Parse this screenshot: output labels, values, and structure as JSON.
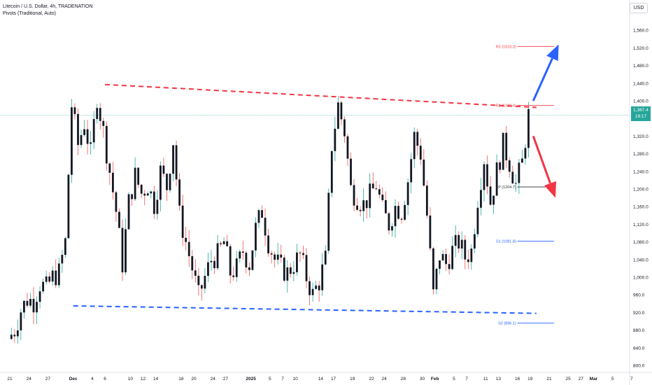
{
  "header": {
    "symbol_line": "Litecoin / U.S. Dollar, 4h, TRADENATION",
    "indicator_line": "Pivots (Traditional, Auto)"
  },
  "currency_button": "USD",
  "last_price": {
    "value": "1,367.4",
    "countdown": "19:17"
  },
  "chart_data": {
    "type": "candlestick",
    "title": "Litecoin / U.S. Dollar, 4h, TRADENATION",
    "ylim": [
      800,
      1600
    ],
    "y_ticks": [
      800,
      840,
      880,
      920,
      960,
      1000,
      1040,
      1080,
      1120,
      1160,
      1200,
      1240,
      1280,
      1320,
      1360,
      1400,
      1440,
      1480,
      1520,
      1560
    ],
    "y_tick_labels": [
      "800.0",
      "840.0",
      "880.0",
      "920.0",
      "960.0",
      "1,000.0",
      "1,040.0",
      "1,080.0",
      "1,120.0",
      "1,160.0",
      "1,200.0",
      "1,240.0",
      "1,280.0",
      "1,320.0",
      "1,360.0",
      "1,400.0",
      "1,440.0",
      "1,480.0",
      "1,520.0",
      "1,560.0"
    ],
    "x_ticks": [
      {
        "day": 0,
        "label": "21",
        "bold": false
      },
      {
        "day": 3,
        "label": "24",
        "bold": false
      },
      {
        "day": 6,
        "label": "27",
        "bold": false
      },
      {
        "day": 10,
        "label": "Dec",
        "bold": true
      },
      {
        "day": 13,
        "label": "4",
        "bold": false
      },
      {
        "day": 15,
        "label": "6",
        "bold": false
      },
      {
        "day": 19,
        "label": "10",
        "bold": false
      },
      {
        "day": 21,
        "label": "12",
        "bold": false
      },
      {
        "day": 23,
        "label": "14",
        "bold": false
      },
      {
        "day": 27,
        "label": "18",
        "bold": false
      },
      {
        "day": 29,
        "label": "20",
        "bold": false
      },
      {
        "day": 32,
        "label": "24",
        "bold": false
      },
      {
        "day": 34,
        "label": "27",
        "bold": false
      },
      {
        "day": 38,
        "label": "2025",
        "bold": true
      },
      {
        "day": 41,
        "label": "5",
        "bold": false
      },
      {
        "day": 43,
        "label": "7",
        "bold": false
      },
      {
        "day": 45,
        "label": "10",
        "bold": false
      },
      {
        "day": 49,
        "label": "14",
        "bold": false
      },
      {
        "day": 51,
        "label": "17",
        "bold": false
      },
      {
        "day": 54,
        "label": "19",
        "bold": false
      },
      {
        "day": 57,
        "label": "22",
        "bold": false
      },
      {
        "day": 59,
        "label": "24",
        "bold": false
      },
      {
        "day": 62,
        "label": "28",
        "bold": false
      },
      {
        "day": 65,
        "label": "30",
        "bold": false
      },
      {
        "day": 67,
        "label": "Feb",
        "bold": true
      },
      {
        "day": 70,
        "label": "5",
        "bold": false
      },
      {
        "day": 72,
        "label": "7",
        "bold": false
      },
      {
        "day": 75,
        "label": "11",
        "bold": false
      },
      {
        "day": 77,
        "label": "13",
        "bold": false
      },
      {
        "day": 80,
        "label": "16",
        "bold": false
      },
      {
        "day": 82,
        "label": "19",
        "bold": false
      },
      {
        "day": 85,
        "label": "21",
        "bold": false
      },
      {
        "day": 88,
        "label": "25",
        "bold": false
      },
      {
        "day": 90,
        "label": "27",
        "bold": false
      },
      {
        "day": 92,
        "label": "Mar",
        "bold": true
      },
      {
        "day": 95,
        "label": "5",
        "bold": false
      },
      {
        "day": 98,
        "label": "7",
        "bold": false
      }
    ],
    "x_range": [
      -0.5,
      99.5
    ],
    "price_path": [
      [
        0,
        860
      ],
      [
        1,
        880
      ],
      [
        2,
        925
      ],
      [
        3,
        950
      ],
      [
        4,
        945
      ],
      [
        5,
        985
      ],
      [
        6,
        975
      ],
      [
        7,
        1000
      ],
      [
        8,
        1010
      ],
      [
        9,
        1080
      ],
      [
        10,
        1390
      ],
      [
        11,
        1300
      ],
      [
        12,
        1350
      ],
      [
        13,
        1280
      ],
      [
        14,
        1410
      ],
      [
        15,
        1330
      ],
      [
        16,
        1240
      ],
      [
        17,
        1150
      ],
      [
        18,
        1030
      ],
      [
        19,
        1170
      ],
      [
        20,
        1230
      ],
      [
        21,
        1190
      ],
      [
        22,
        1210
      ],
      [
        23,
        1165
      ],
      [
        24,
        1240
      ],
      [
        25,
        1205
      ],
      [
        26,
        1310
      ],
      [
        27,
        1140
      ],
      [
        28,
        1080
      ],
      [
        29,
        1020
      ],
      [
        30,
        955
      ],
      [
        31,
        1000
      ],
      [
        32,
        1040
      ],
      [
        33,
        1050
      ],
      [
        34,
        1080
      ],
      [
        35,
        1010
      ],
      [
        36,
        1020
      ],
      [
        37,
        1060
      ],
      [
        38,
        1030
      ],
      [
        39,
        1110
      ],
      [
        40,
        1150
      ],
      [
        41,
        1080
      ],
      [
        42,
        1040
      ],
      [
        43,
        1020
      ],
      [
        44,
        1010
      ],
      [
        45,
        1030
      ],
      [
        46,
        1050
      ],
      [
        47,
        1000
      ],
      [
        48,
        960
      ],
      [
        49,
        990
      ],
      [
        50,
        1040
      ],
      [
        51,
        1300
      ],
      [
        52,
        1390
      ],
      [
        53,
        1330
      ],
      [
        54,
        1200
      ],
      [
        55,
        1180
      ],
      [
        56,
        1165
      ],
      [
        57,
        1185
      ],
      [
        58,
        1210
      ],
      [
        59,
        1150
      ],
      [
        60,
        1120
      ],
      [
        61,
        1160
      ],
      [
        62,
        1150
      ],
      [
        63,
        1220
      ],
      [
        64,
        1320
      ],
      [
        65,
        1280
      ],
      [
        66,
        1140
      ],
      [
        67,
        960
      ],
      [
        68,
        1050
      ],
      [
        69,
        1030
      ],
      [
        70,
        1060
      ],
      [
        71,
        1080
      ],
      [
        72,
        1045
      ],
      [
        73,
        1060
      ],
      [
        74,
        1180
      ],
      [
        75,
        1270
      ],
      [
        76,
        1170
      ],
      [
        77,
        1240
      ],
      [
        78,
        1300
      ],
      [
        79,
        1260
      ],
      [
        80,
        1210
      ],
      [
        81,
        1260
      ],
      [
        82,
        1367
      ]
    ],
    "series": [
      {
        "name": "Litecoin / U.S. Dollar",
        "type": "candlestick"
      }
    ],
    "colors": {
      "up": "#26a69a",
      "down": "#ef5350",
      "candle_body": "#131722"
    },
    "pivots": [
      {
        "label": "R2",
        "value_text": "1523.3",
        "level": 1523.3,
        "color": "#f23645"
      },
      {
        "label": "R1",
        "value_text": "1389.4",
        "level": 1389.4,
        "color": "#f23645"
      },
      {
        "label": "P",
        "value_text": "1204.7",
        "level": 1204.7,
        "color": "#2a2e39"
      },
      {
        "label": "S1",
        "value_text": "1081.8",
        "level": 1081.8,
        "color": "#2962ff"
      },
      {
        "label": "S2",
        "value_text": "896.1",
        "level": 896.1,
        "color": "#2962ff"
      }
    ],
    "trendlines": [
      {
        "name": "resistance",
        "color": "#f23645",
        "style": "dashed",
        "from": [
          15,
          1437
        ],
        "to": [
          83,
          1385
        ]
      },
      {
        "name": "support",
        "color": "#2962ff",
        "style": "dashed",
        "from": [
          10,
          935
        ],
        "to": [
          83,
          918
        ]
      }
    ],
    "arrows": [
      {
        "name": "bullish",
        "color": "#2962ff",
        "from": [
          82.5,
          1400
        ],
        "to": [
          86.5,
          1528
        ]
      },
      {
        "name": "bearish",
        "color": "#f23645",
        "from": [
          82.5,
          1320
        ],
        "to": [
          86,
          1180
        ]
      }
    ],
    "last_price_line": 1367.4
  }
}
